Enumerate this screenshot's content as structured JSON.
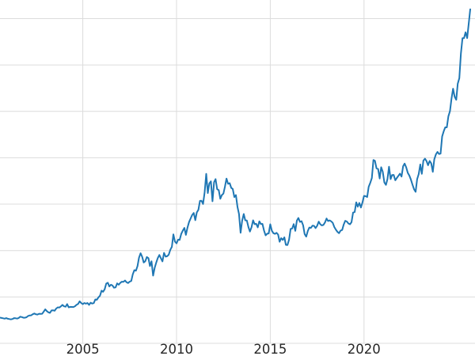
{
  "chart_data": {
    "type": "line",
    "title": "",
    "xlabel": "",
    "ylabel": "",
    "legend": false,
    "grid": true,
    "line_color": "#1f77b4",
    "grid_color": "#dcdcdc",
    "background_color": "#ffffff",
    "tick_label_color": "#262626",
    "x_tick_labels": [
      "2005",
      "2010",
      "2015",
      "2020"
    ],
    "x_ticks_years": [
      2005,
      2010,
      2015,
      2020
    ],
    "y_gridline_values": [
      0,
      500,
      1000,
      1500,
      2000,
      2500,
      3000,
      3500
    ],
    "x_axis": {
      "range_years": [
        2000.5,
        2025.75
      ],
      "start_year": 2000.5,
      "step_years": 0.08333333
    },
    "y_axis": {
      "range": [
        0,
        3700
      ]
    },
    "values": [
      281,
      277,
      274,
      270,
      266,
      272,
      265,
      262,
      258,
      263,
      272,
      270,
      267,
      274,
      287,
      283,
      276,
      276,
      281,
      295,
      301,
      302,
      314,
      321,
      313,
      310,
      319,
      317,
      319,
      342,
      367,
      347,
      334,
      328,
      355,
      356,
      351,
      375,
      388,
      386,
      398,
      414,
      399,
      395,
      423,
      388,
      393,
      392,
      391,
      400,
      415,
      425,
      453,
      435,
      422,
      435,
      427,
      435,
      414,
      437,
      429,
      433,
      473,
      470,
      495,
      513,
      568,
      556,
      582,
      644,
      653,
      613,
      632,
      623,
      599,
      603,
      646,
      632,
      651,
      664,
      662,
      677,
      659,
      650,
      665,
      672,
      743,
      789,
      783,
      833,
      923,
      971,
      933,
      871,
      885,
      930,
      918,
      833,
      884,
      730,
      814,
      869,
      919,
      952,
      916,
      883,
      975,
      934,
      939,
      955,
      1008,
      1040,
      1175,
      1096,
      1078,
      1118,
      1115,
      1179,
      1215,
      1244,
      1169,
      1246,
      1307,
      1346,
      1383,
      1405,
      1327,
      1411,
      1439,
      1535,
      1536,
      1502,
      1628,
      1826,
      1620,
      1722,
      1746,
      1531,
      1737,
      1770,
      1662,
      1651,
      1558,
      1598,
      1614,
      1691,
      1776,
      1719,
      1726,
      1675,
      1664,
      1576,
      1598,
      1469,
      1394,
      1192,
      1323,
      1394,
      1326,
      1324,
      1253,
      1205,
      1251,
      1326,
      1284,
      1288,
      1250,
      1315,
      1285,
      1287,
      1216,
      1164,
      1182,
      1184,
      1283,
      1213,
      1187,
      1180,
      1191,
      1172,
      1095,
      1134,
      1114,
      1142,
      1061,
      1060,
      1116,
      1234,
      1237,
      1285,
      1212,
      1322,
      1351,
      1309,
      1316,
      1272,
      1178,
      1150,
      1211,
      1248,
      1244,
      1268,
      1266,
      1242,
      1267,
      1311,
      1283,
      1271,
      1275,
      1303,
      1345,
      1318,
      1325,
      1315,
      1298,
      1253,
      1224,
      1201,
      1187,
      1215,
      1222,
      1281,
      1321,
      1313,
      1292,
      1283,
      1305,
      1409,
      1414,
      1520,
      1472,
      1513,
      1464,
      1517,
      1589,
      1586,
      1577,
      1687,
      1730,
      1781,
      1976,
      1967,
      1886,
      1879,
      1777,
      1898,
      1848,
      1734,
      1708,
      1769,
      1903,
      1770,
      1814,
      1815,
      1757,
      1783,
      1805,
      1829,
      1797,
      1909,
      1937,
      1897,
      1837,
      1807,
      1766,
      1711,
      1661,
      1633,
      1769,
      1824,
      1928,
      1827,
      1969,
      1990,
      1963,
      1919,
      1965,
      1940,
      1848,
      1984,
      2036,
      2063,
      2040,
      2044,
      2230,
      2286,
      2327,
      2327,
      2448,
      2503,
      2635,
      2744,
      2657,
      2625,
      2798,
      2858,
      3124,
      3289,
      3289,
      3352,
      3290,
      3448,
      3600
    ]
  }
}
